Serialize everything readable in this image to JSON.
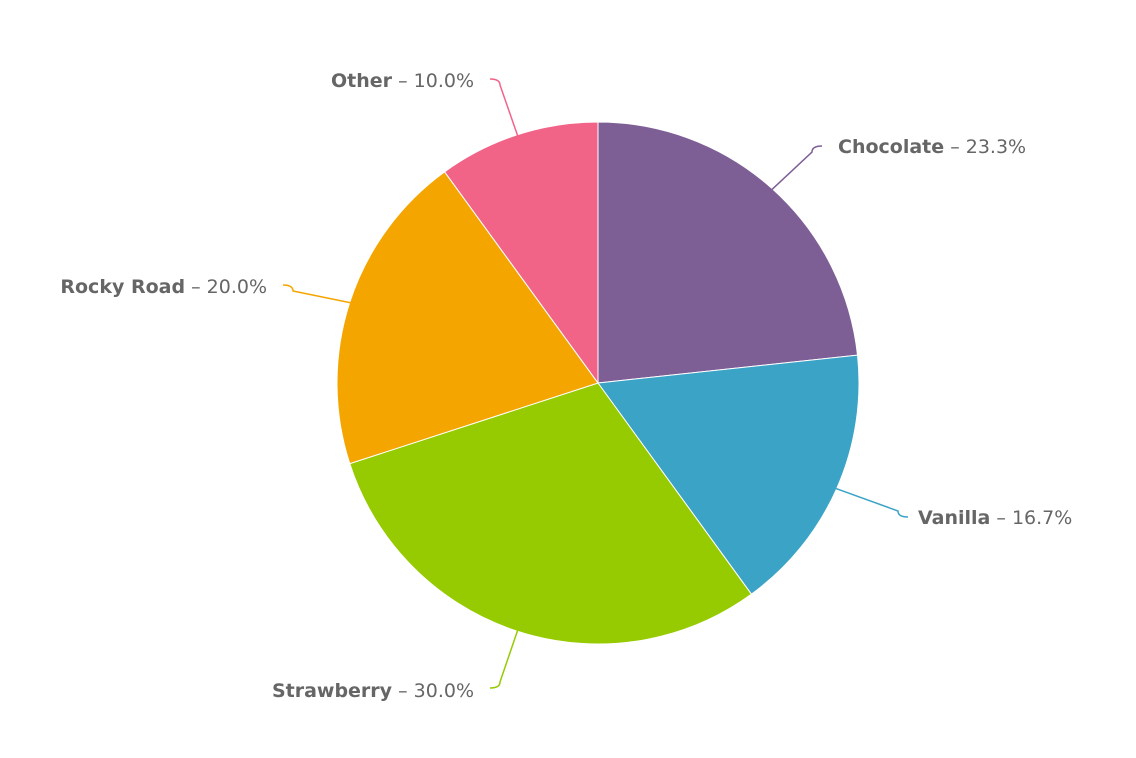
{
  "chart_data": {
    "type": "pie",
    "start_angle": "top, clockwise",
    "slices": [
      {
        "name": "Chocolate",
        "value": 23.3,
        "label": "23.3%",
        "color": "#7d5f96"
      },
      {
        "name": "Vanilla",
        "value": 16.7,
        "label": "16.7%",
        "color": "#3aa3c6"
      },
      {
        "name": "Strawberry",
        "value": 30.0,
        "label": "30.0%",
        "color": "#95cb00"
      },
      {
        "name": "Rocky Road",
        "value": 20.0,
        "label": "20.0%",
        "color": "#f5a500"
      },
      {
        "name": "Other",
        "value": 10.0,
        "label": "10.0%",
        "color": "#f26388"
      }
    ],
    "separator": " – ",
    "label_color": "#666666"
  }
}
